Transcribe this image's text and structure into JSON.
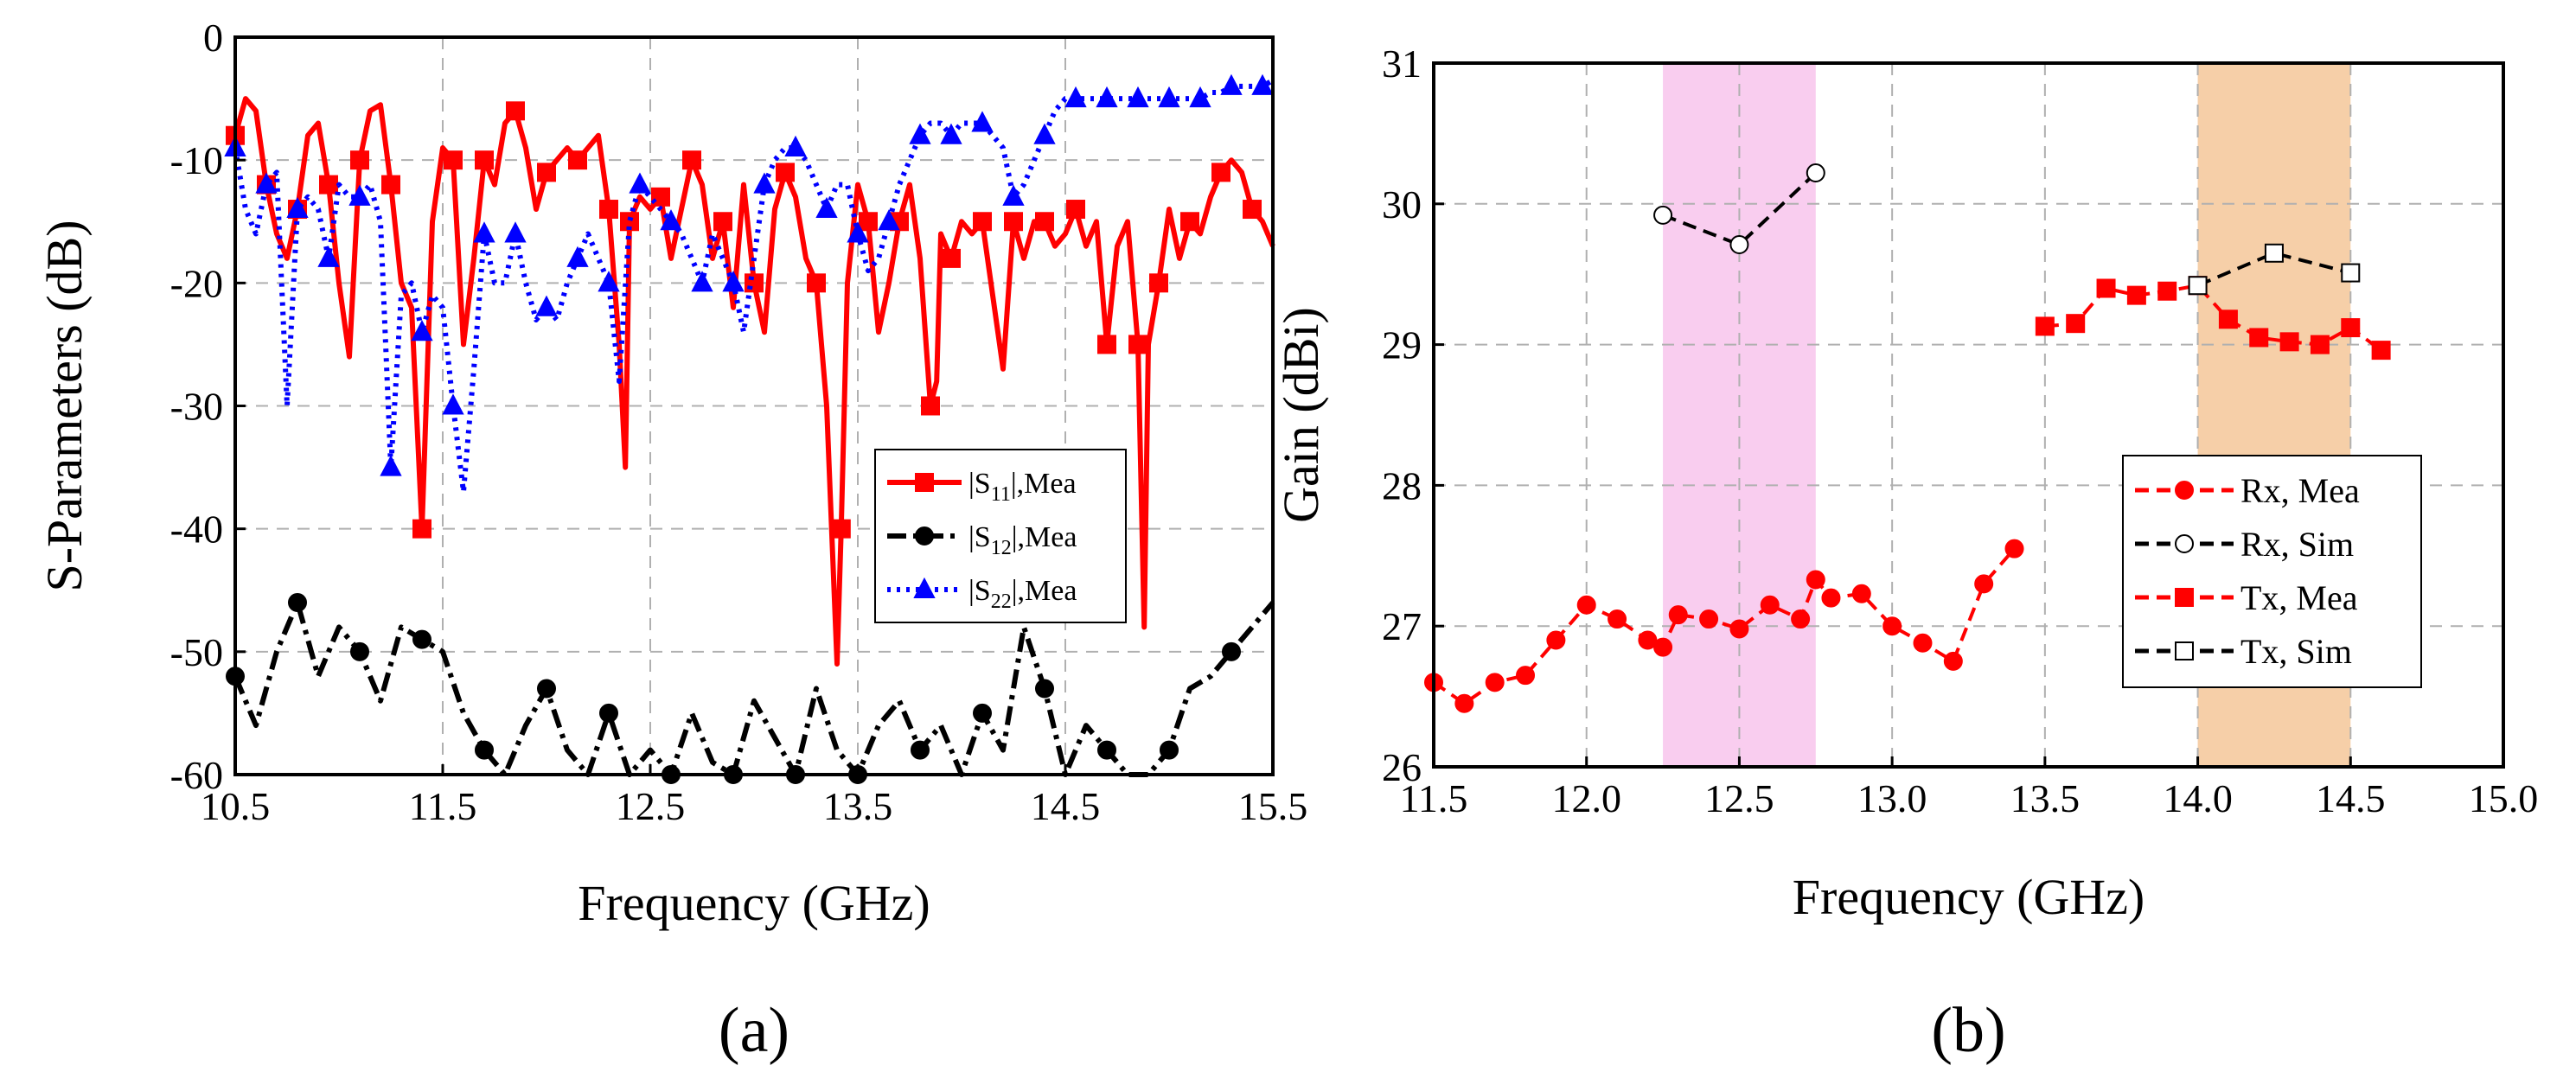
{
  "chart_data": [
    {
      "type": "line",
      "panel_label": "(a)",
      "xlabel": "Frequency (GHz)",
      "ylabel": "S-Parameters (dB)",
      "xlim": [
        10.5,
        15.5
      ],
      "ylim": [
        -60,
        0
      ],
      "grid": true,
      "legend_position": "lower-right",
      "x_ticks": [
        "10.5",
        "11.5",
        "12.5",
        "13.5",
        "14.5",
        "15.5"
      ],
      "y_ticks": [
        "0",
        "-10",
        "-20",
        "-30",
        "-40",
        "-50",
        "-60"
      ],
      "series": [
        {
          "name": "|S11|,Mea",
          "legend_main": "|S",
          "legend_sub": "11",
          "legend_tail": "|,Mea",
          "color": "#ff0000",
          "style": "solid",
          "marker": "square",
          "x": [
            10.5,
            10.55,
            10.6,
            10.65,
            10.7,
            10.75,
            10.8,
            10.85,
            10.9,
            10.95,
            11.0,
            11.05,
            11.1,
            11.15,
            11.2,
            11.25,
            11.3,
            11.35,
            11.4,
            11.45,
            11.5,
            11.55,
            11.6,
            11.65,
            11.7,
            11.75,
            11.8,
            11.85,
            11.9,
            11.95,
            12.0,
            12.05,
            12.1,
            12.15,
            12.2,
            12.25,
            12.3,
            12.35,
            12.38,
            12.4,
            12.45,
            12.5,
            12.55,
            12.6,
            12.65,
            12.7,
            12.75,
            12.8,
            12.85,
            12.9,
            12.95,
            13.0,
            13.05,
            13.1,
            13.15,
            13.2,
            13.25,
            13.3,
            13.35,
            13.4,
            13.42,
            13.45,
            13.5,
            13.55,
            13.6,
            13.65,
            13.7,
            13.75,
            13.8,
            13.85,
            13.88,
            13.9,
            13.95,
            14.0,
            14.05,
            14.1,
            14.15,
            14.2,
            14.25,
            14.3,
            14.35,
            14.4,
            14.45,
            14.5,
            14.55,
            14.6,
            14.65,
            14.7,
            14.75,
            14.8,
            14.85,
            14.88,
            14.9,
            14.95,
            15.0,
            15.05,
            15.1,
            15.15,
            15.2,
            15.25,
            15.3,
            15.35,
            15.4,
            15.45,
            15.5
          ],
          "y": [
            -8,
            -5,
            -6,
            -12,
            -16,
            -18,
            -14,
            -8,
            -7,
            -12,
            -20,
            -26,
            -10,
            -6,
            -5.5,
            -12,
            -20,
            -22,
            -40,
            -15,
            -9,
            -10,
            -25,
            -18,
            -10,
            -12,
            -7,
            -6,
            -9,
            -14,
            -11,
            -10,
            -9,
            -10,
            -9,
            -8,
            -14,
            -25,
            -35,
            -15,
            -13,
            -14,
            -13,
            -18,
            -14,
            -10,
            -12,
            -18,
            -15,
            -22,
            -12,
            -20,
            -24,
            -14,
            -11,
            -13,
            -18,
            -20,
            -30,
            -51,
            -40,
            -20,
            -12,
            -15,
            -24,
            -20,
            -15,
            -12,
            -18,
            -30,
            -28,
            -16,
            -18,
            -15,
            -16,
            -15,
            -21,
            -27,
            -15,
            -18,
            -15,
            -15,
            -17,
            -16,
            -14,
            -17,
            -15,
            -25,
            -17,
            -15,
            -25,
            -48,
            -25,
            -20,
            -14,
            -18,
            -15,
            -16,
            -13,
            -11,
            -10,
            -11,
            -14,
            -15,
            -17
          ]
        },
        {
          "name": "|S12|,Mea",
          "legend_main": "|S",
          "legend_sub": "12",
          "legend_tail": "|,Mea",
          "color": "#000000",
          "style": "dashdot",
          "marker": "circle",
          "x": [
            10.5,
            10.6,
            10.7,
            10.8,
            10.9,
            11.0,
            11.1,
            11.2,
            11.3,
            11.4,
            11.5,
            11.6,
            11.7,
            11.8,
            11.9,
            12.0,
            12.1,
            12.2,
            12.3,
            12.4,
            12.5,
            12.6,
            12.7,
            12.8,
            12.9,
            13.0,
            13.1,
            13.2,
            13.3,
            13.4,
            13.5,
            13.6,
            13.7,
            13.8,
            13.9,
            14.0,
            14.1,
            14.2,
            14.3,
            14.4,
            14.5,
            14.6,
            14.7,
            14.8,
            14.9,
            15.0,
            15.1,
            15.2,
            15.3,
            15.4,
            15.5
          ],
          "y": [
            -52,
            -56,
            -50,
            -46,
            -52,
            -48,
            -50,
            -54,
            -48,
            -49,
            -50,
            -55,
            -58,
            -60,
            -56,
            -53,
            -58,
            -60,
            -55,
            -60,
            -58,
            -60,
            -55,
            -59,
            -60,
            -54,
            -57,
            -60,
            -53,
            -58,
            -60,
            -56,
            -54,
            -58,
            -56,
            -60,
            -55,
            -58,
            -48,
            -53,
            -60,
            -56,
            -58,
            -60,
            -60,
            -58,
            -53,
            -52,
            -50,
            -48,
            -46
          ]
        },
        {
          "name": "|S22|,Mea",
          "legend_main": "|S",
          "legend_sub": "22",
          "legend_tail": "|,Mea",
          "color": "#0000ff",
          "style": "dotted",
          "marker": "triangle",
          "x": [
            10.5,
            10.55,
            10.6,
            10.65,
            10.7,
            10.75,
            10.8,
            10.85,
            10.9,
            10.95,
            11.0,
            11.05,
            11.1,
            11.15,
            11.2,
            11.25,
            11.3,
            11.35,
            11.4,
            11.45,
            11.5,
            11.55,
            11.6,
            11.65,
            11.7,
            11.75,
            11.8,
            11.85,
            11.9,
            11.95,
            12.0,
            12.05,
            12.1,
            12.15,
            12.2,
            12.25,
            12.3,
            12.35,
            12.4,
            12.45,
            12.5,
            12.55,
            12.6,
            12.65,
            12.7,
            12.75,
            12.8,
            12.85,
            12.9,
            12.95,
            13.0,
            13.05,
            13.1,
            13.15,
            13.2,
            13.25,
            13.3,
            13.35,
            13.4,
            13.45,
            13.5,
            13.55,
            13.6,
            13.65,
            13.7,
            13.75,
            13.8,
            13.85,
            13.9,
            13.95,
            14.0,
            14.05,
            14.1,
            14.15,
            14.2,
            14.25,
            14.3,
            14.35,
            14.4,
            14.45,
            14.5,
            14.55,
            14.6,
            14.65,
            14.7,
            14.75,
            14.8,
            14.85,
            14.9,
            14.95,
            15.0,
            15.05,
            15.1,
            15.15,
            15.2,
            15.25,
            15.3,
            15.35,
            15.4,
            15.45,
            15.5
          ],
          "y": [
            -9,
            -14,
            -16,
            -12,
            -11,
            -30,
            -14,
            -13,
            -14,
            -18,
            -12,
            -13,
            -13,
            -12,
            -15,
            -35,
            -21,
            -20,
            -24,
            -21,
            -22,
            -30,
            -37,
            -27,
            -16,
            -20,
            -20,
            -16,
            -20,
            -23,
            -22,
            -23,
            -20,
            -18,
            -16,
            -18,
            -20,
            -28,
            -15,
            -12,
            -13,
            -14,
            -15,
            -16,
            -18,
            -20,
            -16,
            -18,
            -20,
            -24,
            -18,
            -12,
            -10,
            -9,
            -9,
            -10,
            -12,
            -14,
            -12,
            -12,
            -16,
            -19,
            -18,
            -15,
            -12,
            -10,
            -8,
            -7,
            -7,
            -8,
            -7,
            -7,
            -7,
            -8,
            -9,
            -13,
            -12,
            -10,
            -8,
            -6,
            -5,
            -5,
            -5,
            -5,
            -5,
            -5,
            -5,
            -5,
            -5,
            -5,
            -5,
            -5,
            -5,
            -5,
            -4.5,
            -4.5,
            -4,
            -4,
            -4,
            -4,
            -3.5
          ]
        }
      ]
    },
    {
      "type": "line",
      "panel_label": "(b)",
      "xlabel": "Frequency (GHz)",
      "ylabel": "Gain (dBi)",
      "xlim": [
        11.5,
        15.0
      ],
      "ylim": [
        26,
        31
      ],
      "grid": true,
      "legend_position": "right",
      "x_ticks": [
        "11.5",
        "12.0",
        "12.5",
        "13.0",
        "13.5",
        "14.0",
        "14.5",
        "15.0"
      ],
      "y_ticks": [
        "26",
        "27",
        "28",
        "29",
        "30",
        "31"
      ],
      "bands": [
        {
          "from": 12.25,
          "to": 12.75,
          "color": "#f9cdef"
        },
        {
          "from": 14.0,
          "to": 14.5,
          "color": "#f6cfa8"
        }
      ],
      "series": [
        {
          "name": "Rx, Mea",
          "color": "#ff0000",
          "style": "dashed",
          "marker": "circle-filled",
          "x": [
            11.5,
            11.6,
            11.7,
            11.8,
            11.9,
            12.0,
            12.1,
            12.2,
            12.25,
            12.3,
            12.4,
            12.5,
            12.6,
            12.7,
            12.75,
            12.8,
            12.9,
            13.0,
            13.1,
            13.2,
            13.3,
            13.4
          ],
          "y": [
            26.6,
            26.45,
            26.6,
            26.65,
            26.9,
            27.15,
            27.05,
            26.9,
            26.85,
            27.08,
            27.05,
            26.98,
            27.15,
            27.05,
            27.33,
            27.2,
            27.23,
            27.0,
            26.88,
            26.75,
            27.3,
            27.55
          ]
        },
        {
          "name": "Rx, Sim",
          "color": "#000000",
          "style": "dashed",
          "marker": "circle-open",
          "x": [
            12.25,
            12.5,
            12.75
          ],
          "y": [
            29.92,
            29.71,
            30.22
          ]
        },
        {
          "name": "Tx, Mea",
          "color": "#ff0000",
          "style": "dashed",
          "marker": "square-filled",
          "x": [
            13.5,
            13.6,
            13.7,
            13.8,
            13.9,
            14.0,
            14.1,
            14.2,
            14.3,
            14.4,
            14.5,
            14.6
          ],
          "y": [
            29.13,
            29.15,
            29.4,
            29.35,
            29.38,
            29.42,
            29.18,
            29.05,
            29.02,
            29.0,
            29.12,
            28.96
          ]
        },
        {
          "name": "Tx, Sim",
          "color": "#000000",
          "style": "dashed",
          "marker": "square-open",
          "x": [
            14.0,
            14.25,
            14.5
          ],
          "y": [
            29.42,
            29.65,
            29.51
          ]
        }
      ]
    }
  ]
}
